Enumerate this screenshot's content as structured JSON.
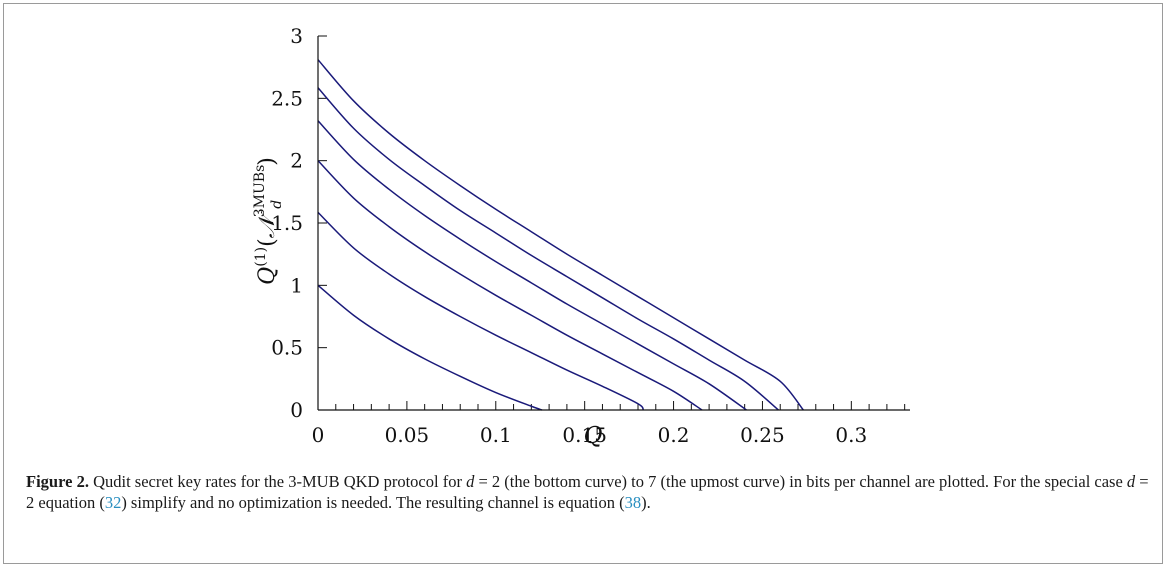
{
  "chart_data": {
    "type": "line",
    "xlabel": "Q",
    "ylabel": {
      "main": "Q",
      "superscript": "(1)",
      "paren_open": "(",
      "script": "𝒩",
      "sub": "d",
      "sup": "3MUBs",
      "paren_close": ")"
    },
    "xlim": [
      0,
      0.333
    ],
    "ylim": [
      0,
      3
    ],
    "x_ticks": [
      0,
      0.05,
      0.1,
      0.15,
      0.2,
      0.25,
      0.3
    ],
    "x_tick_labels": [
      "0",
      "0.05",
      "0.1",
      "0.15",
      "0.2",
      "0.25",
      "0.3"
    ],
    "y_ticks": [
      0,
      0.5,
      1,
      1.5,
      2,
      2.5,
      3
    ],
    "y_tick_labels": [
      "0",
      "0.5",
      "1",
      "1.5",
      "2",
      "2.5",
      "3"
    ],
    "line_color": "#1a1a7a",
    "series": [
      {
        "d": 2,
        "x": [
          0,
          0.02,
          0.04,
          0.06,
          0.08,
          0.1,
          0.12,
          0.126
        ],
        "y": [
          1.0,
          0.76,
          0.57,
          0.41,
          0.27,
          0.14,
          0.03,
          0.0
        ]
      },
      {
        "d": 3,
        "x": [
          0,
          0.02,
          0.04,
          0.06,
          0.08,
          0.1,
          0.12,
          0.14,
          0.16,
          0.18,
          0.183
        ],
        "y": [
          1.585,
          1.3,
          1.09,
          0.91,
          0.75,
          0.6,
          0.46,
          0.32,
          0.19,
          0.05,
          0.0
        ]
      },
      {
        "d": 4,
        "x": [
          0,
          0.02,
          0.04,
          0.06,
          0.08,
          0.1,
          0.12,
          0.14,
          0.16,
          0.18,
          0.2,
          0.216
        ],
        "y": [
          2.0,
          1.7,
          1.47,
          1.27,
          1.09,
          0.92,
          0.76,
          0.6,
          0.45,
          0.3,
          0.15,
          0.0
        ]
      },
      {
        "d": 5,
        "x": [
          0,
          0.02,
          0.04,
          0.06,
          0.08,
          0.1,
          0.12,
          0.14,
          0.16,
          0.18,
          0.2,
          0.22,
          0.241
        ],
        "y": [
          2.32,
          2.01,
          1.77,
          1.56,
          1.37,
          1.19,
          1.02,
          0.85,
          0.69,
          0.53,
          0.37,
          0.21,
          0.0
        ]
      },
      {
        "d": 6,
        "x": [
          0,
          0.02,
          0.04,
          0.06,
          0.08,
          0.1,
          0.12,
          0.14,
          0.16,
          0.18,
          0.2,
          0.22,
          0.24,
          0.259
        ],
        "y": [
          2.585,
          2.26,
          2.01,
          1.8,
          1.6,
          1.42,
          1.24,
          1.07,
          0.9,
          0.73,
          0.57,
          0.4,
          0.23,
          0.0
        ]
      },
      {
        "d": 7,
        "x": [
          0,
          0.02,
          0.04,
          0.06,
          0.08,
          0.1,
          0.12,
          0.14,
          0.16,
          0.18,
          0.2,
          0.22,
          0.24,
          0.26,
          0.273
        ],
        "y": [
          2.81,
          2.48,
          2.22,
          2.0,
          1.8,
          1.61,
          1.43,
          1.25,
          1.08,
          0.91,
          0.74,
          0.57,
          0.4,
          0.23,
          0.0
        ]
      }
    ]
  },
  "caption": {
    "label": "Figure 2.",
    "t1": " Qudit secret key rates for the 3-MUB QKD protocol for ",
    "m1": "d",
    "t2": " = 2 (the bottom curve) to 7 (the upmost curve) in bits per channel are plotted. For the special case ",
    "m2": "d",
    "t3": " = 2 equation (",
    "ref1": "32",
    "t4": ") simplify and no optimization is needed. The resulting channel is equation (",
    "ref2": "38",
    "t5": ")."
  }
}
